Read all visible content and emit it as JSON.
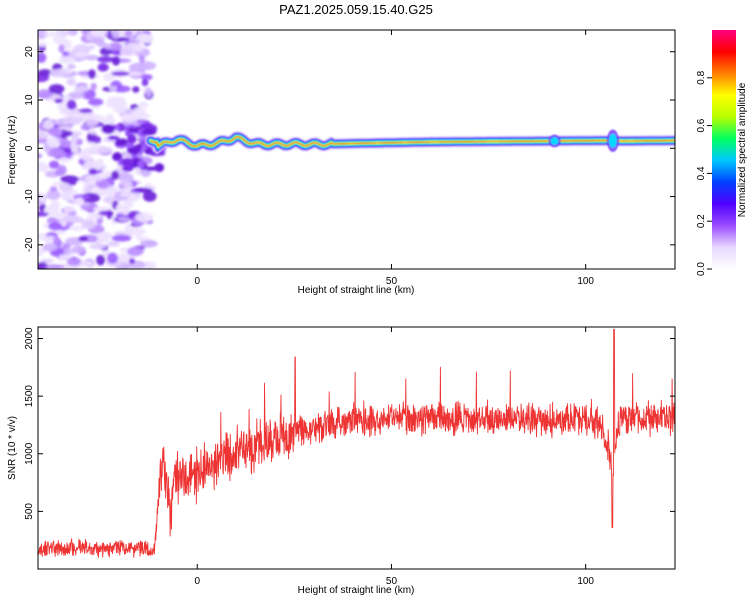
{
  "title": "PAZ1.2025.059.15.40.G25",
  "chart_data": [
    {
      "type": "heatmap",
      "xlabel": "Height of straight line (km)",
      "ylabel": "Frequency (Hz)",
      "xlim": [
        -41,
        123
      ],
      "ylim": [
        -25,
        24.5
      ],
      "xticks": [
        0,
        50,
        100
      ],
      "yticks": [
        -20,
        -10,
        0,
        10,
        20
      ],
      "colorbar": {
        "label": "Normalized spectral amplitude",
        "ticks": [
          0.0,
          0.2,
          0.4,
          0.6,
          0.8
        ],
        "range": [
          0,
          1
        ],
        "colors": [
          "#ffffff",
          "#e8d8ff",
          "#9b4dff",
          "#5000ff",
          "#0040ff",
          "#00c8ff",
          "#00ff60",
          "#b8ff00",
          "#ffff00",
          "#ff8000",
          "#ff0000",
          "#ff0080"
        ]
      },
      "ridge": [
        {
          "x": -10,
          "f": 0.6
        },
        {
          "x": -5,
          "f": 1.8
        },
        {
          "x": 0,
          "f": 0.5
        },
        {
          "x": 5,
          "f": 1.0
        },
        {
          "x": 10,
          "f": 2.2
        },
        {
          "x": 15,
          "f": 0.9
        },
        {
          "x": 20,
          "f": 0.8
        },
        {
          "x": 25,
          "f": 0.9
        },
        {
          "x": 30,
          "f": 0.8
        },
        {
          "x": 40,
          "f": 1.0
        },
        {
          "x": 60,
          "f": 1.3
        },
        {
          "x": 90,
          "f": 1.5
        },
        {
          "x": 105,
          "f": 1.6
        },
        {
          "x": 110,
          "f": 1.5
        },
        {
          "x": 123,
          "f": 1.6
        }
      ]
    },
    {
      "type": "line",
      "xlabel": "Height of straight line (km)",
      "ylabel": "SNR (10 * v/v)",
      "xlim": [
        -41,
        123
      ],
      "ylim": [
        0,
        2100
      ],
      "xticks": [
        0,
        50,
        100
      ],
      "yticks": [
        500,
        1000,
        1500,
        2000
      ],
      "color": "#ee3333",
      "series": [
        {
          "x": [
            -41,
            -35,
            -30,
            -25,
            -20,
            -15,
            -11,
            -10,
            -9,
            -8,
            -7,
            -6,
            -4,
            -2,
            0,
            5,
            10,
            15,
            20,
            25,
            30,
            40,
            50,
            60,
            70,
            80,
            90,
            100,
            104,
            106,
            107,
            108,
            109,
            110,
            115,
            120,
            123
          ],
          "y": [
            160,
            180,
            190,
            170,
            190,
            180,
            170,
            600,
            950,
            850,
            380,
            760,
            820,
            800,
            820,
            940,
            1000,
            1080,
            1120,
            1170,
            1230,
            1280,
            1310,
            1300,
            1300,
            1310,
            1290,
            1300,
            1270,
            1050,
            700,
            1200,
            1300,
            1300,
            1310,
            1300,
            1310
          ]
        }
      ]
    }
  ]
}
